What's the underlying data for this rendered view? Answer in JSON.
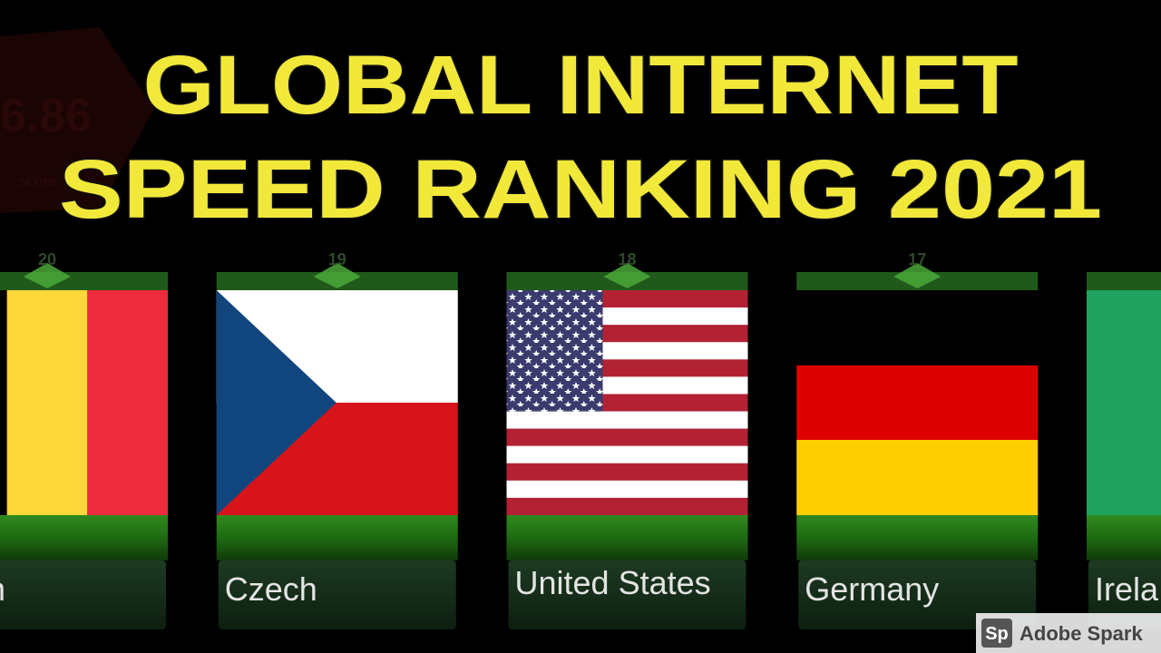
{
  "title": {
    "line1": "GLOBAL INTERNET",
    "line2": "SPEED RANKING 2021"
  },
  "background": {
    "score_value": "6.86",
    "score_label": "score"
  },
  "cards": [
    {
      "rank": 20,
      "country": "gium"
    },
    {
      "rank": 19,
      "country": "Czech"
    },
    {
      "rank": 18,
      "country": "United States"
    },
    {
      "rank": 17,
      "country": "Germany"
    },
    {
      "country": "Irela"
    }
  ],
  "watermark": {
    "logo": "Sp",
    "text": "Adobe Spark"
  }
}
